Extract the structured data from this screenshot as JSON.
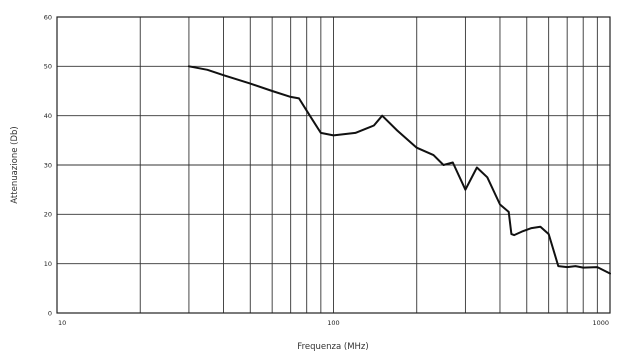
{
  "chart_data": {
    "type": "line",
    "title": "",
    "xlabel": "Frequenza (MHz)",
    "ylabel": "Attenuazione (Db)",
    "xscale": "log",
    "xlim": [
      10,
      1000
    ],
    "ylim": [
      0,
      60
    ],
    "x_tick_labels": [
      "10",
      "100",
      "1000"
    ],
    "y_ticks": [
      0,
      10,
      20,
      30,
      40,
      50,
      60
    ],
    "grid": true,
    "series": [
      {
        "x": [
          30,
          35,
          40,
          50,
          60,
          70,
          75,
          80,
          90,
          100,
          120,
          140,
          150,
          170,
          200,
          230,
          250,
          270,
          300,
          330,
          360,
          400,
          430,
          440,
          450,
          480,
          520,
          560,
          600,
          650,
          700,
          750,
          800,
          900,
          1000
        ],
        "y": [
          50,
          49.3,
          48.2,
          46.5,
          45,
          43.8,
          43.5,
          41,
          36.5,
          36,
          36.5,
          38,
          40,
          37,
          33.5,
          32,
          30,
          30.5,
          25,
          29.5,
          27.5,
          22,
          20.5,
          16,
          15.8,
          16.5,
          17.2,
          17.5,
          16,
          9.5,
          9.3,
          9.5,
          9.2,
          9.3,
          8
        ]
      }
    ]
  }
}
